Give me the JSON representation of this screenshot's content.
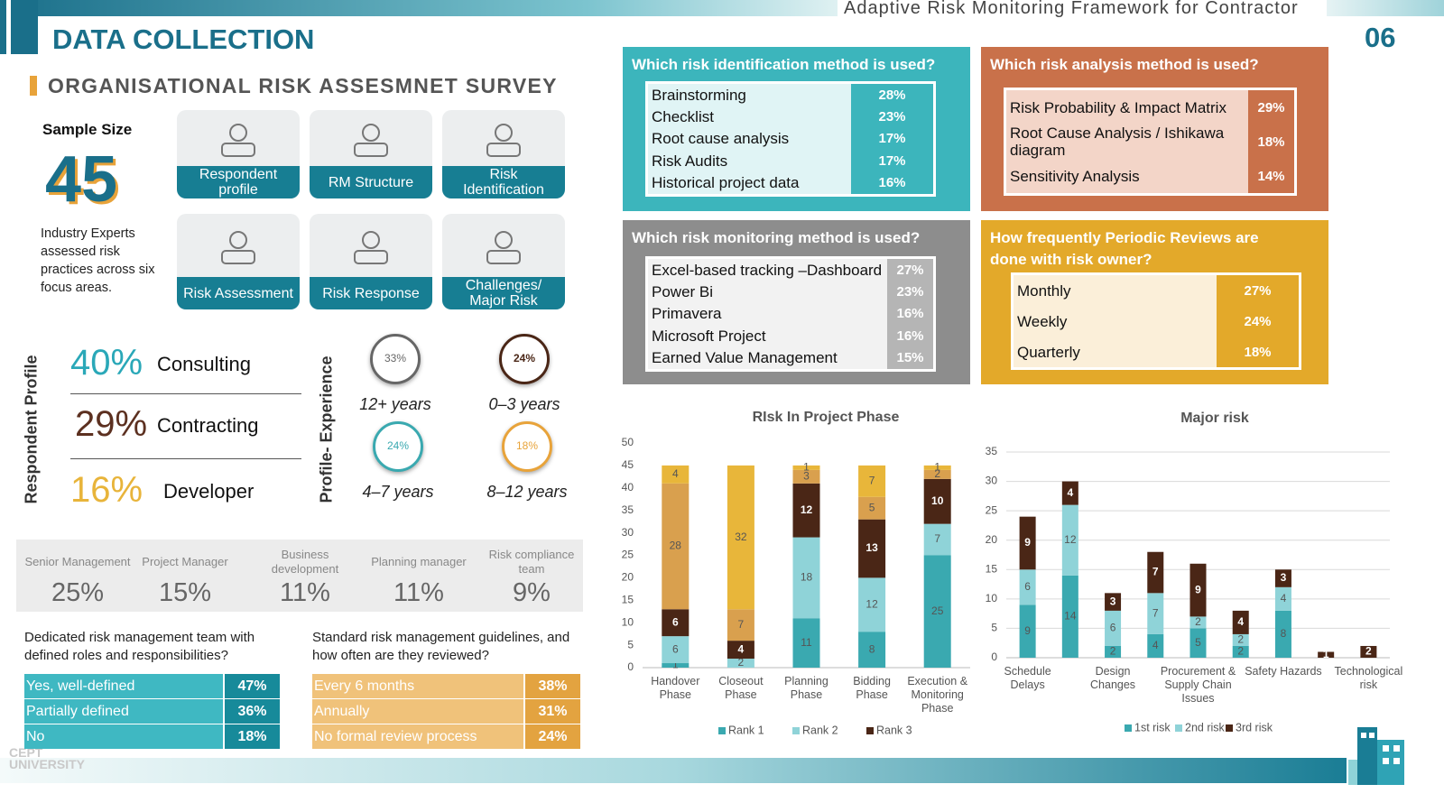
{
  "header": {
    "doc_title": "Adaptive Risk Monitoring Framework for Contractor",
    "section": "DATA COLLECTION",
    "page": "06",
    "subtitle": "ORGANISATIONAL RISK ASSESMNET SURVEY"
  },
  "sample": {
    "label": "Sample Size",
    "value": "45",
    "note": "Industry Experts assessed risk practices across six focus areas."
  },
  "focus_areas": [
    "Respondent profile",
    "RM Structure",
    "Risk Identification",
    "Risk Assessment",
    "Risk Response",
    "Challenges/ Major Risk"
  ],
  "respondent_profile": {
    "label": "Respondent Profile",
    "items": [
      {
        "percent": "40%",
        "name": "Consulting"
      },
      {
        "percent": "29%",
        "name": "Contracting"
      },
      {
        "percent": "16%",
        "name": "Developer"
      }
    ]
  },
  "experience": {
    "label": "Profile- Experience",
    "items": [
      {
        "percent": "33%",
        "years": "12+ years"
      },
      {
        "percent": "24%",
        "years": "0–3 years"
      },
      {
        "percent": "24%",
        "years": "4–7 years"
      },
      {
        "percent": "18%",
        "years": "8–12 years"
      }
    ]
  },
  "roles": [
    {
      "name": "Senior Management",
      "percent": "25%"
    },
    {
      "name": "Project Manager",
      "percent": "15%"
    },
    {
      "name": "Business development",
      "percent": "11%"
    },
    {
      "name": "Planning manager",
      "percent": "11%"
    },
    {
      "name": "Risk compliance team",
      "percent": "9%"
    }
  ],
  "team": {
    "question": "Dedicated risk management team with defined roles and responsibilities?",
    "rows": [
      [
        "Yes, well-defined",
        "47%"
      ],
      [
        "Partially defined",
        "36%"
      ],
      [
        "No",
        "18%"
      ]
    ]
  },
  "guidelines": {
    "question": "Standard risk management guidelines, and how often are they reviewed?",
    "rows": [
      [
        "Every 6 months",
        "38%"
      ],
      [
        "Annually",
        "31%"
      ],
      [
        "No formal review process",
        "24%"
      ]
    ]
  },
  "identification": {
    "title": "Which risk identification method is used?",
    "rows": [
      [
        "Brainstorming",
        "28%"
      ],
      [
        "Checklist",
        "23%"
      ],
      [
        "Root cause analysis",
        "17%"
      ],
      [
        "Risk Audits",
        "17%"
      ],
      [
        "Historical project data",
        "16%"
      ]
    ]
  },
  "analysis": {
    "title": "Which risk analysis method is used?",
    "rows": [
      [
        "Risk Probability & Impact Matrix",
        "29%"
      ],
      [
        "Root Cause Analysis /  Ishikawa diagram",
        "18%"
      ],
      [
        "Sensitivity Analysis",
        "14%"
      ]
    ]
  },
  "monitoring": {
    "title": "Which risk monitoring method is used?",
    "rows": [
      [
        "Excel-based tracking –Dashboard",
        "27%"
      ],
      [
        "Power Bi",
        "23%"
      ],
      [
        "Primavera",
        "16%"
      ],
      [
        "Microsoft Project",
        "16%"
      ],
      [
        "Earned Value Management",
        "15%"
      ]
    ]
  },
  "reviews": {
    "title": "How frequently Periodic Reviews are done with risk owner?",
    "rows": [
      [
        "Monthly",
        "27%"
      ],
      [
        "Weekly",
        "24%"
      ],
      [
        "Quarterly",
        "18%"
      ]
    ]
  },
  "chart_data": [
    {
      "type": "stacked_bar",
      "title": "RIsk In Project Phase",
      "categories": [
        "Handover Phase",
        "Closeout Phase",
        "Planning Phase",
        "Bidding Phase",
        "Execution & Monitoring Phase"
      ],
      "series": [
        {
          "name": "Rank 1",
          "color": "#3aa9b0",
          "values": [
            1,
            0,
            11,
            8,
            25
          ]
        },
        {
          "name": "Rank 2",
          "color": "#8fd3d8",
          "values": [
            6,
            2,
            18,
            12,
            7
          ]
        },
        {
          "name": "Rank 3",
          "color": "#4a2616",
          "values": [
            6,
            4,
            12,
            13,
            10
          ]
        },
        {
          "color": "#d9a04e",
          "values": [
            28,
            7,
            3,
            5,
            2
          ]
        },
        {
          "color": "#e8b63a",
          "values": [
            4,
            32,
            1,
            7,
            1
          ]
        }
      ],
      "ylim": [
        0,
        50
      ],
      "yticks": [
        0,
        5,
        10,
        15,
        20,
        25,
        30,
        35,
        40,
        45,
        50
      ],
      "grid": false
    },
    {
      "type": "stacked_bar",
      "title": "Major risk",
      "categories": [
        "Schedule Delays",
        null,
        "Design Changes",
        null,
        "Procurement & Supply Chain Issues",
        null,
        "Safety Hazards",
        null,
        "Technological risk"
      ],
      "series": [
        {
          "name": "1st risk",
          "color": "#3aa9b0",
          "values": [
            9,
            14,
            2,
            4,
            5,
            2,
            8,
            0,
            0
          ]
        },
        {
          "name": "2nd risk",
          "color": "#8fd3d8",
          "values": [
            6,
            12,
            6,
            7,
            2,
            2,
            4,
            0,
            0
          ]
        },
        {
          "name": "3rd risk",
          "color": "#4a2616",
          "values": [
            9,
            4,
            3,
            7,
            9,
            4,
            3,
            1,
            2
          ]
        }
      ],
      "ylim": [
        0,
        35
      ],
      "yticks": [
        0,
        5,
        10,
        15,
        20,
        25,
        30,
        35
      ],
      "grid": true
    }
  ]
}
